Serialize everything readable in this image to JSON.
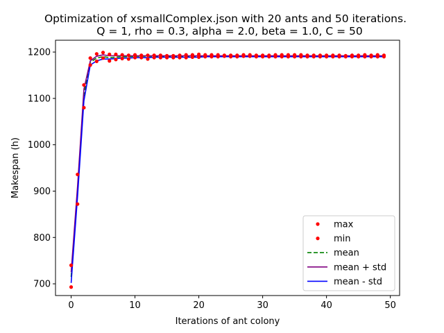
{
  "chart_data": {
    "type": "line",
    "title": "Optimization of xsmallComplex.json with 20 ants and 50 iterations.",
    "subtitle": "Q = 1, rho = 0.3, alpha = 2.0, beta = 1.0, C = 50",
    "xlabel": "Iterations of ant colony",
    "ylabel": "Makespan (h)",
    "xlim": [
      -2.45,
      51.45
    ],
    "ylim": [
      674.7,
      1225.5
    ],
    "xticks": [
      0,
      10,
      20,
      30,
      40,
      50
    ],
    "yticks": [
      700,
      800,
      900,
      1000,
      1100,
      1200
    ],
    "grid": false,
    "legend_position": "lower-right",
    "x": [
      0,
      1,
      2,
      3,
      4,
      5,
      6,
      7,
      8,
      9,
      10,
      11,
      12,
      13,
      14,
      15,
      16,
      17,
      18,
      19,
      20,
      21,
      22,
      23,
      24,
      25,
      26,
      27,
      28,
      29,
      30,
      31,
      32,
      33,
      34,
      35,
      36,
      37,
      38,
      39,
      40,
      41,
      42,
      43,
      44,
      45,
      46,
      47,
      48,
      49
    ],
    "series": [
      {
        "name": "max",
        "style": "points",
        "color": "#ff0000",
        "values": [
          740,
          936,
          1129,
          1187,
          1196,
          1199,
          1195,
          1195,
          1194,
          1193,
          1194,
          1193,
          1193,
          1193,
          1193,
          1192,
          1192,
          1193,
          1194,
          1194,
          1195,
          1194,
          1194,
          1194,
          1193,
          1193,
          1193,
          1194,
          1194,
          1193,
          1193,
          1193,
          1194,
          1194,
          1194,
          1194,
          1194,
          1193,
          1193,
          1193,
          1193,
          1193,
          1193,
          1192,
          1193,
          1193,
          1194,
          1193,
          1194,
          1193
        ]
      },
      {
        "name": "min",
        "style": "points",
        "color": "#ff0000",
        "values": [
          693,
          872,
          1080,
          1172,
          1180,
          1187,
          1181,
          1184,
          1186,
          1185,
          1188,
          1188,
          1185,
          1188,
          1188,
          1188,
          1188,
          1188,
          1188,
          1189,
          1189,
          1190,
          1190,
          1190,
          1191,
          1190,
          1190,
          1191,
          1191,
          1190,
          1190,
          1190,
          1190,
          1190,
          1190,
          1190,
          1190,
          1190,
          1190,
          1190,
          1190,
          1190,
          1190,
          1190,
          1190,
          1190,
          1190,
          1190,
          1190,
          1190
        ]
      },
      {
        "name": "mean",
        "style": "dashed",
        "color": "#008000",
        "values": [
          715,
          900,
          1108,
          1178,
          1187,
          1190,
          1188,
          1189,
          1190,
          1190,
          1191,
          1191,
          1191,
          1191,
          1191,
          1191,
          1191,
          1191,
          1191,
          1191,
          1191,
          1191,
          1191,
          1191,
          1191,
          1191,
          1191,
          1191,
          1191,
          1191,
          1191,
          1191,
          1191,
          1191,
          1191,
          1191,
          1191,
          1191,
          1191,
          1191,
          1191,
          1191,
          1191,
          1191,
          1191,
          1191,
          1191,
          1191,
          1191,
          1191
        ]
      },
      {
        "name": "mean + std",
        "style": "solid",
        "color": "#800080",
        "values": [
          725,
          910,
          1120,
          1181,
          1191,
          1194,
          1192,
          1192,
          1192,
          1192,
          1192,
          1192,
          1192,
          1192,
          1192,
          1192,
          1192,
          1192,
          1192,
          1192,
          1192,
          1192,
          1192,
          1192,
          1192,
          1192,
          1192,
          1192,
          1192,
          1192,
          1192,
          1192,
          1192,
          1192,
          1192,
          1192,
          1192,
          1192,
          1192,
          1192,
          1192,
          1192,
          1192,
          1192,
          1192,
          1192,
          1192,
          1192,
          1192,
          1192
        ]
      },
      {
        "name": "mean - std",
        "style": "solid",
        "color": "#0000ff",
        "values": [
          702,
          888,
          1095,
          1172,
          1181,
          1185,
          1185,
          1186,
          1187,
          1187,
          1188,
          1188,
          1188,
          1189,
          1189,
          1189,
          1189,
          1189,
          1189,
          1189,
          1189,
          1190,
          1190,
          1190,
          1190,
          1190,
          1190,
          1190,
          1190,
          1190,
          1190,
          1190,
          1190,
          1190,
          1190,
          1190,
          1190,
          1190,
          1190,
          1190,
          1190,
          1190,
          1190,
          1190,
          1190,
          1190,
          1190,
          1190,
          1190,
          1190
        ]
      }
    ]
  }
}
